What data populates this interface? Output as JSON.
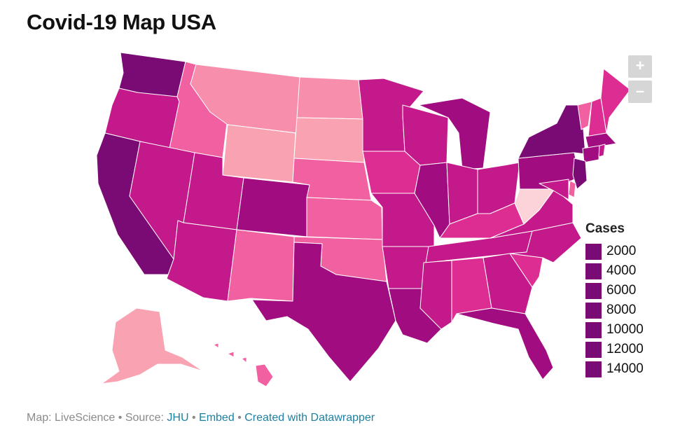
{
  "title": "Covid-19 Map USA",
  "zoom": {
    "in_label": "+",
    "out_label": "–"
  },
  "legend": {
    "title": "Cases",
    "items": [
      {
        "label": "2000",
        "color": "#7a0b75"
      },
      {
        "label": "4000",
        "color": "#7a0b75"
      },
      {
        "label": "6000",
        "color": "#7a0b75"
      },
      {
        "label": "8000",
        "color": "#7a0b75"
      },
      {
        "label": "10000",
        "color": "#7a0b75"
      },
      {
        "label": "12000",
        "color": "#7a0b75"
      },
      {
        "label": "14000",
        "color": "#7a0b75"
      }
    ]
  },
  "footer": {
    "map_credit": "Map: LiveScience",
    "source_prefix": "Source:",
    "source_link": "JHU",
    "embed_link": "Embed",
    "created_link": "Created with Datawrapper",
    "separator": "•"
  },
  "colors": {
    "level1": "#fbd3d8",
    "level2": "#f9a2b2",
    "level3": "#f78fac",
    "level4": "#f160a0",
    "level5": "#dd2d93",
    "level6": "#c4198a",
    "level7": "#a10d80",
    "level8": "#7a0b75",
    "zoom_bg": "#d6d6d6",
    "link": "#1d81a2"
  },
  "states": [
    {
      "name": "WA",
      "level": 8
    },
    {
      "name": "OR",
      "level": 6
    },
    {
      "name": "CA",
      "level": 8
    },
    {
      "name": "ID",
      "level": 4
    },
    {
      "name": "NV",
      "level": 6
    },
    {
      "name": "MT",
      "level": 3
    },
    {
      "name": "WY",
      "level": 2
    },
    {
      "name": "UT",
      "level": 6
    },
    {
      "name": "AZ",
      "level": 6
    },
    {
      "name": "CO",
      "level": 7
    },
    {
      "name": "NM",
      "level": 4
    },
    {
      "name": "ND",
      "level": 3
    },
    {
      "name": "SD",
      "level": 2
    },
    {
      "name": "NE",
      "level": 4
    },
    {
      "name": "KS",
      "level": 4
    },
    {
      "name": "OK",
      "level": 4
    },
    {
      "name": "TX",
      "level": 7
    },
    {
      "name": "MN",
      "level": 6
    },
    {
      "name": "IA",
      "level": 5
    },
    {
      "name": "MO",
      "level": 6
    },
    {
      "name": "AR",
      "level": 6
    },
    {
      "name": "LA",
      "level": 7
    },
    {
      "name": "WI",
      "level": 6
    },
    {
      "name": "IL",
      "level": 7
    },
    {
      "name": "MI",
      "level": 7
    },
    {
      "name": "IN",
      "level": 6
    },
    {
      "name": "OH",
      "level": 6
    },
    {
      "name": "KY",
      "level": 5
    },
    {
      "name": "TN",
      "level": 6
    },
    {
      "name": "MS",
      "level": 6
    },
    {
      "name": "AL",
      "level": 5
    },
    {
      "name": "GA",
      "level": 6
    },
    {
      "name": "FL",
      "level": 7
    },
    {
      "name": "SC",
      "level": 5
    },
    {
      "name": "NC",
      "level": 6
    },
    {
      "name": "VA",
      "level": 6
    },
    {
      "name": "WV",
      "level": 1
    },
    {
      "name": "PA",
      "level": 7
    },
    {
      "name": "NY",
      "level": 8
    },
    {
      "name": "VT",
      "level": 4
    },
    {
      "name": "NH",
      "level": 5
    },
    {
      "name": "ME",
      "level": 5
    },
    {
      "name": "MA",
      "level": 7
    },
    {
      "name": "CT",
      "level": 7
    },
    {
      "name": "RI",
      "level": 6
    },
    {
      "name": "NJ",
      "level": 8
    },
    {
      "name": "DE",
      "level": 4
    },
    {
      "name": "MD",
      "level": 6
    },
    {
      "name": "AK",
      "level": 2
    },
    {
      "name": "HI",
      "level": 4
    }
  ]
}
